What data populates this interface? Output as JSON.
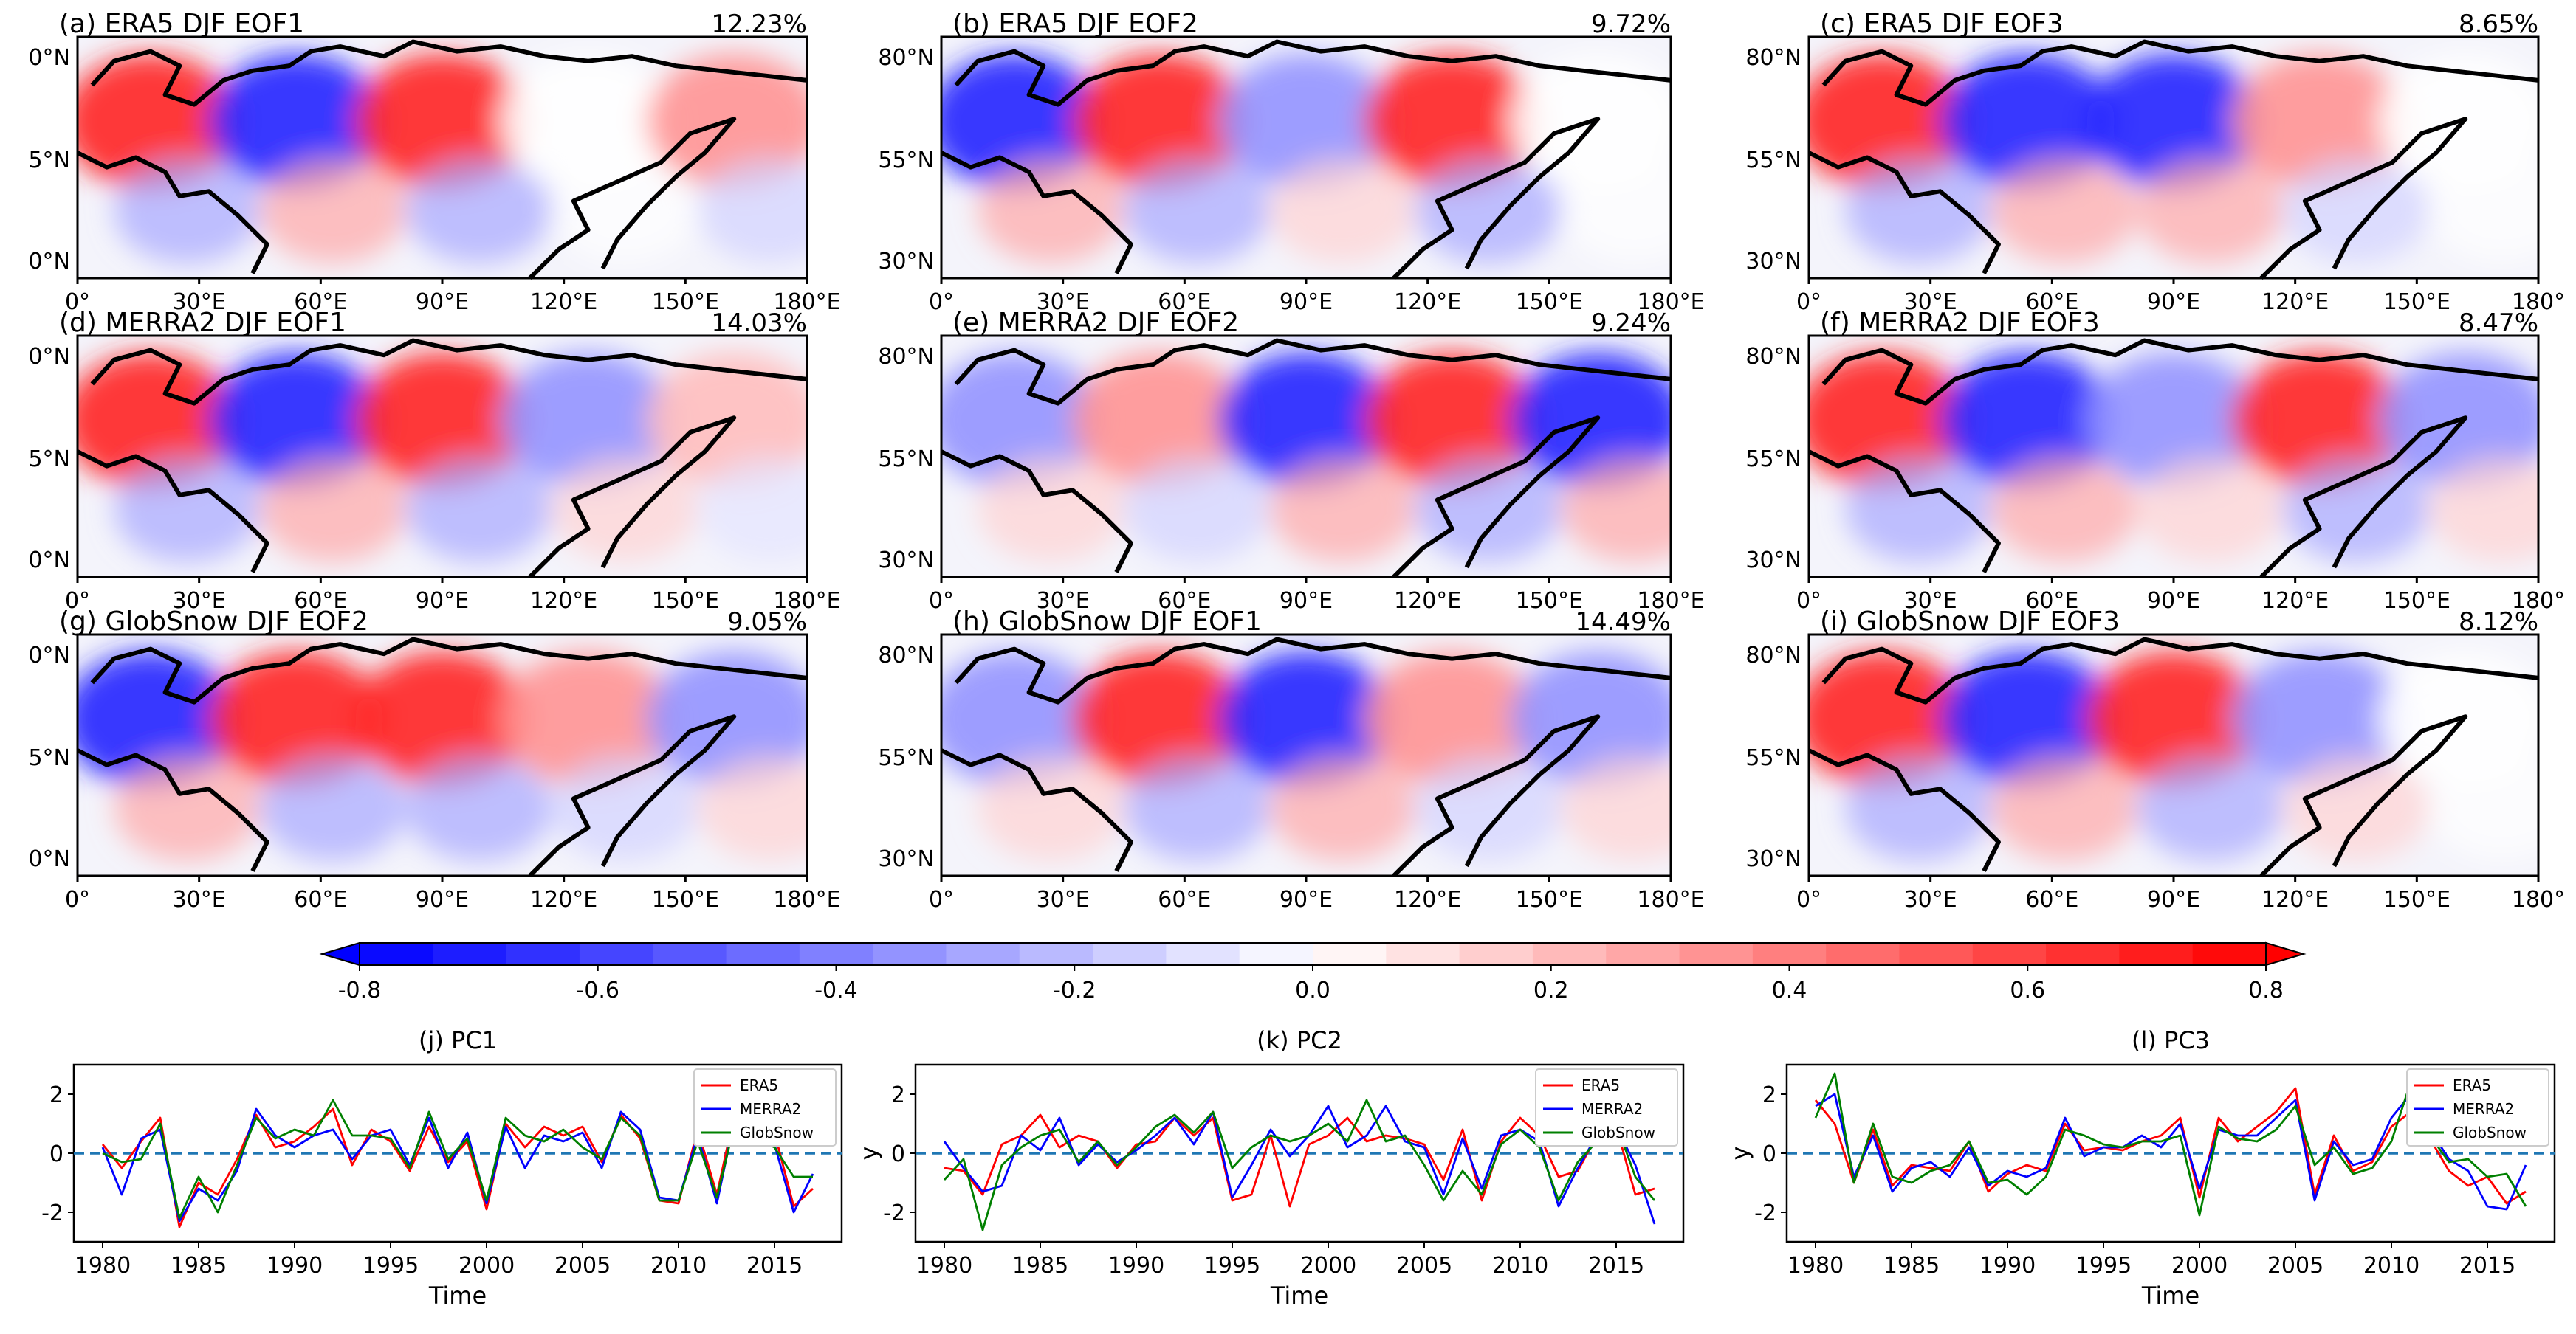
{
  "maps": [
    {
      "title": "(a) ERA5 DJF EOF1",
      "variance": "12.23%",
      "pattern": [
        1,
        -1,
        1,
        0,
        0.5
      ]
    },
    {
      "title": "(b) ERA5 DJF EOF2",
      "variance": "9.72%",
      "pattern": [
        -1,
        1,
        -0.5,
        1,
        0
      ]
    },
    {
      "title": "(c) ERA5 DJF EOF3",
      "variance": "8.65%",
      "pattern": [
        1,
        -1,
        -1,
        0.5,
        0
      ]
    },
    {
      "title": "(d) MERRA2 DJF EOF1",
      "variance": "14.03%",
      "pattern": [
        1,
        -1,
        1,
        -0.5,
        0.3
      ]
    },
    {
      "title": "(e) MERRA2 DJF EOF2",
      "variance": "9.24%",
      "pattern": [
        -0.5,
        0.5,
        -1,
        1,
        -1
      ]
    },
    {
      "title": "(f) MERRA2 DJF EOF3",
      "variance": "8.47%",
      "pattern": [
        1,
        -1,
        -0.5,
        1,
        -0.5
      ]
    },
    {
      "title": "(g) GlobSnow DJF EOF2",
      "variance": "9.05%",
      "pattern": [
        -1,
        1,
        1,
        0.5,
        -0.5
      ]
    },
    {
      "title": "(h) GlobSnow DJF EOF1",
      "variance": "14.49%",
      "pattern": [
        -0.5,
        1,
        -1,
        0.5,
        -0.5
      ]
    },
    {
      "title": "(i) GlobSnow DJF EOF3",
      "variance": "8.12%",
      "pattern": [
        1,
        -1,
        1,
        -0.5,
        0
      ]
    }
  ],
  "map_axes": {
    "x_ticks": [
      "0°",
      "30°E",
      "60°E",
      "90°E",
      "120°E",
      "150°E",
      "180°E"
    ],
    "y_ticks": [
      "80°N",
      "55°N",
      "30°N"
    ],
    "y_ticks_left_column": [
      "0°N",
      "5°N",
      "0°N"
    ],
    "x_ticks_right_column": [
      "0°",
      "30°E",
      "60°E",
      "90°E",
      "120°E",
      "150°E",
      "180°"
    ]
  },
  "colorbar": {
    "ticks": [
      "-0.8",
      "-0.6",
      "-0.4",
      "-0.2",
      "0.0",
      "0.2",
      "0.4",
      "0.6",
      "0.8"
    ],
    "min": -0.8,
    "max": 0.8,
    "levels": 26,
    "negative_color": "#0000ff",
    "positive_color": "#ff0000",
    "mid_color": "#ffffff"
  },
  "pc_axes": {
    "xlabel": "Time",
    "ylabel": "y",
    "x_ticks": [
      "1980",
      "1985",
      "1990",
      "1995",
      "2000",
      "2005",
      "2010",
      "2015"
    ],
    "y_ticks": [
      "2",
      "0",
      "-2"
    ]
  },
  "legend_labels": [
    "ERA5",
    "MERRA2",
    "GlobSnow"
  ],
  "chart_data": [
    {
      "type": "line",
      "title": "(j) PC1",
      "xlabel": "Time",
      "ylabel": "",
      "x": [
        1980,
        1981,
        1982,
        1983,
        1984,
        1985,
        1986,
        1987,
        1988,
        1989,
        1990,
        1991,
        1992,
        1993,
        1994,
        1995,
        1996,
        1997,
        1998,
        1999,
        2000,
        2001,
        2002,
        2003,
        2004,
        2005,
        2006,
        2007,
        2008,
        2009,
        2010,
        2011,
        2012,
        2013,
        2014,
        2015,
        2016,
        2017
      ],
      "xlim": [
        1978.5,
        2018.5
      ],
      "ylim": [
        -3,
        3
      ],
      "series": [
        {
          "name": "ERA5",
          "color": "#ff0000",
          "values": [
            0.3,
            -0.5,
            0.4,
            1.2,
            -2.5,
            -1.0,
            -1.4,
            -0.2,
            1.3,
            0.2,
            0.4,
            0.9,
            1.5,
            -0.4,
            0.8,
            0.4,
            -0.6,
            0.9,
            -0.3,
            0.4,
            -1.9,
            1.0,
            0.2,
            0.9,
            0.6,
            0.9,
            -0.3,
            1.3,
            0.5,
            -1.6,
            -1.7,
            0.8,
            -1.4,
            1.6,
            0.6,
            0.7,
            -1.8,
            -1.2
          ]
        },
        {
          "name": "MERRA2",
          "color": "#0000ff",
          "values": [
            0.2,
            -1.4,
            0.5,
            0.8,
            -2.3,
            -1.2,
            -1.6,
            -0.6,
            1.5,
            0.6,
            0.2,
            0.6,
            0.8,
            -0.2,
            0.6,
            0.8,
            -0.4,
            1.2,
            -0.5,
            0.7,
            -1.7,
            0.9,
            -0.5,
            0.6,
            0.4,
            0.7,
            -0.5,
            1.4,
            0.8,
            -1.5,
            -1.6,
            0.6,
            -1.7,
            1.4,
            0.4,
            0.3,
            -2.0,
            -0.7
          ]
        },
        {
          "name": "GlobSnow",
          "color": "#008000",
          "values": [
            0.0,
            -0.3,
            -0.2,
            1.0,
            -2.2,
            -0.8,
            -2.0,
            -0.4,
            1.2,
            0.5,
            0.8,
            0.6,
            1.8,
            0.6,
            0.6,
            0.5,
            -0.5,
            1.4,
            -0.2,
            0.5,
            -1.6,
            1.2,
            0.6,
            0.4,
            0.8,
            0.2,
            -0.2,
            1.2,
            0.6,
            -1.6,
            -1.6,
            0.4,
            -1.5,
            1.2,
            0.5,
            0.2,
            -0.8,
            -0.8
          ]
        }
      ]
    },
    {
      "type": "line",
      "title": "(k) PC2",
      "xlabel": "Time",
      "ylabel": "y",
      "x": [
        1980,
        1981,
        1982,
        1983,
        1984,
        1985,
        1986,
        1987,
        1988,
        1989,
        1990,
        1991,
        1992,
        1993,
        1994,
        1995,
        1996,
        1997,
        1998,
        1999,
        2000,
        2001,
        2002,
        2003,
        2004,
        2005,
        2006,
        2007,
        2008,
        2009,
        2010,
        2011,
        2012,
        2013,
        2014,
        2015,
        2016,
        2017
      ],
      "xlim": [
        1978.5,
        2018.5
      ],
      "ylim": [
        -3,
        3
      ],
      "series": [
        {
          "name": "ERA5",
          "color": "#ff0000",
          "values": [
            -0.5,
            -0.6,
            -1.4,
            0.3,
            0.6,
            1.3,
            0.2,
            0.6,
            0.4,
            -0.5,
            0.3,
            0.4,
            1.2,
            0.6,
            1.2,
            -1.6,
            -1.4,
            0.6,
            -1.8,
            0.3,
            0.6,
            1.2,
            0.4,
            0.6,
            0.5,
            0.3,
            -0.9,
            0.8,
            -1.6,
            0.4,
            1.2,
            0.6,
            -0.8,
            -0.6,
            0.6,
            0.9,
            -1.4,
            -1.2
          ]
        },
        {
          "name": "MERRA2",
          "color": "#0000ff",
          "values": [
            0.4,
            -0.5,
            -1.3,
            -1.1,
            0.6,
            0.1,
            1.2,
            -0.4,
            0.3,
            -0.3,
            0.1,
            0.6,
            1.2,
            0.3,
            1.4,
            -1.5,
            -0.4,
            0.8,
            -0.1,
            0.6,
            1.6,
            0.2,
            0.6,
            1.6,
            0.4,
            0.2,
            -1.4,
            0.5,
            -1.2,
            0.6,
            0.8,
            0.4,
            -1.8,
            -0.5,
            0.6,
            0.9,
            -0.4,
            -2.4
          ]
        },
        {
          "name": "GlobSnow",
          "color": "#008000",
          "values": [
            -0.9,
            -0.2,
            -2.6,
            -0.4,
            0.2,
            0.6,
            0.8,
            -0.3,
            0.4,
            -0.4,
            0.2,
            0.9,
            1.3,
            0.7,
            1.4,
            -0.5,
            0.2,
            0.6,
            0.4,
            0.6,
            1.0,
            0.4,
            1.8,
            0.4,
            0.6,
            -0.4,
            -1.6,
            -0.6,
            -1.4,
            0.3,
            0.8,
            0.2,
            -1.6,
            -0.3,
            0.4,
            1.0,
            -0.8,
            -1.6
          ]
        }
      ]
    },
    {
      "type": "line",
      "title": "(l) PC3",
      "xlabel": "Time",
      "ylabel": "y",
      "x": [
        1980,
        1981,
        1982,
        1983,
        1984,
        1985,
        1986,
        1987,
        1988,
        1989,
        1990,
        1991,
        1992,
        1993,
        1994,
        1995,
        1996,
        1997,
        1998,
        1999,
        2000,
        2001,
        2002,
        2003,
        2004,
        2005,
        2006,
        2007,
        2008,
        2009,
        2010,
        2011,
        2012,
        2013,
        2014,
        2015,
        2016,
        2017
      ],
      "xlim": [
        1978.5,
        2018.5
      ],
      "ylim": [
        -3,
        3
      ],
      "series": [
        {
          "name": "ERA5",
          "color": "#ff0000",
          "values": [
            1.8,
            1.0,
            -1.0,
            0.8,
            -1.1,
            -0.4,
            -0.5,
            -0.6,
            0.4,
            -1.3,
            -0.7,
            -0.4,
            -0.6,
            1.0,
            0.1,
            0.2,
            0.1,
            0.4,
            0.6,
            1.2,
            -1.5,
            1.2,
            0.4,
            0.9,
            1.4,
            2.2,
            -1.4,
            0.6,
            -0.6,
            -0.3,
            0.9,
            1.4,
            0.5,
            -0.6,
            -1.1,
            -0.8,
            -1.7,
            -1.3
          ]
        },
        {
          "name": "MERRA2",
          "color": "#0000ff",
          "values": [
            1.6,
            2.0,
            -0.8,
            0.6,
            -1.3,
            -0.5,
            -0.3,
            -0.8,
            0.2,
            -1.1,
            -0.6,
            -0.8,
            -0.5,
            1.2,
            -0.1,
            0.2,
            0.2,
            0.6,
            0.2,
            1.0,
            -1.2,
            0.8,
            0.6,
            0.6,
            1.2,
            1.8,
            -1.6,
            0.4,
            -0.4,
            -0.2,
            1.2,
            2.0,
            0.8,
            -0.2,
            -0.6,
            -1.8,
            -1.9,
            -0.4
          ]
        },
        {
          "name": "GlobSnow",
          "color": "#008000",
          "values": [
            1.2,
            2.7,
            -1.0,
            1.0,
            -0.8,
            -1.0,
            -0.6,
            -0.4,
            0.4,
            -1.0,
            -0.9,
            -1.4,
            -0.8,
            0.8,
            0.6,
            0.3,
            0.2,
            0.4,
            0.4,
            0.6,
            -2.1,
            0.9,
            0.5,
            0.4,
            0.8,
            1.6,
            -0.4,
            0.2,
            -0.7,
            -0.5,
            0.4,
            2.4,
            0.6,
            -0.3,
            -0.2,
            -0.8,
            -0.7,
            -1.8
          ]
        }
      ]
    }
  ]
}
